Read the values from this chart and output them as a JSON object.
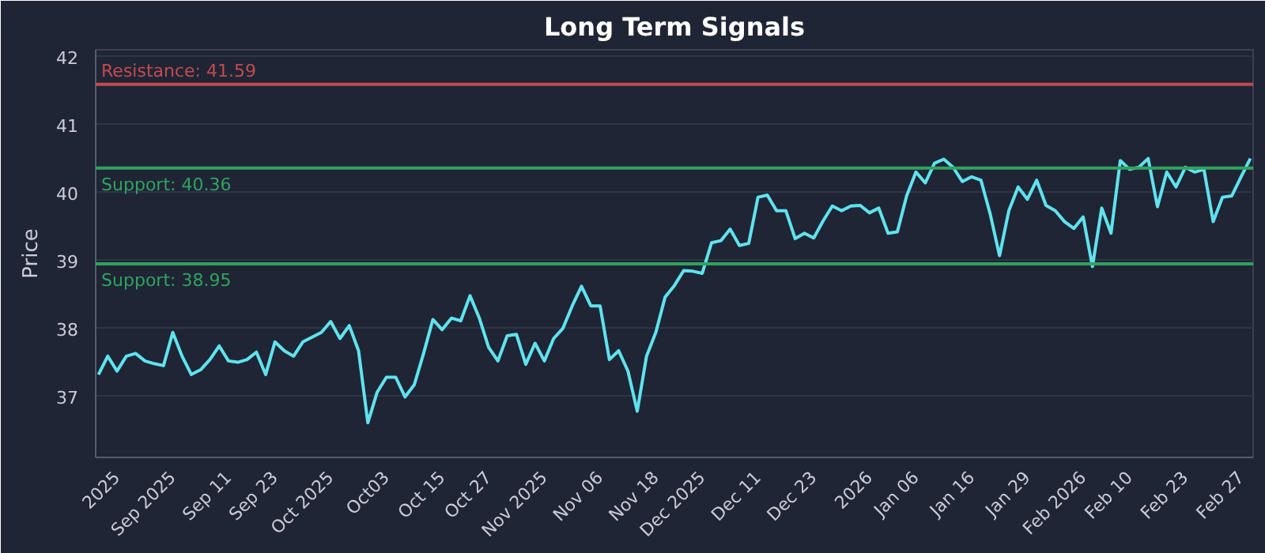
{
  "chart_data": {
    "type": "line",
    "title": "Long Term Signals",
    "ylabel": "Price",
    "categories": [
      null,
      null,
      "2025",
      null,
      null,
      null,
      null,
      null,
      "Sep 2025",
      null,
      null,
      null,
      null,
      null,
      "Sep 11",
      null,
      null,
      null,
      null,
      "Sep 23",
      null,
      null,
      null,
      null,
      null,
      "Oct 2025",
      null,
      null,
      null,
      null,
      null,
      "Oct03",
      null,
      null,
      null,
      null,
      null,
      "Oct 15",
      null,
      null,
      null,
      null,
      "Oct 27",
      null,
      null,
      null,
      null,
      null,
      "Nov 2025",
      null,
      null,
      null,
      null,
      null,
      "Nov 06",
      null,
      null,
      null,
      null,
      null,
      "Nov 18",
      null,
      null,
      null,
      null,
      "Dec 2025",
      null,
      null,
      null,
      null,
      null,
      "Dec 11",
      null,
      null,
      null,
      null,
      null,
      "Dec 23",
      null,
      null,
      null,
      null,
      null,
      "2026",
      null,
      null,
      null,
      null,
      "Jan 06",
      null,
      null,
      null,
      null,
      null,
      "Jan 16",
      null,
      null,
      null,
      null,
      null,
      "Jan 29",
      null,
      null,
      null,
      null,
      null,
      "Feb 2026",
      null,
      null,
      null,
      null,
      "Feb 10",
      null,
      null,
      null,
      null,
      null,
      "Feb 23",
      null,
      null,
      null,
      null,
      null,
      "Feb 27",
      null
    ],
    "series": [
      {
        "color": "#5fe3ee",
        "values": [
          37.32,
          37.59,
          37.37,
          37.59,
          37.63,
          37.52,
          37.48,
          37.45,
          37.94,
          37.59,
          37.32,
          37.39,
          37.54,
          37.74,
          37.52,
          37.5,
          37.54,
          37.65,
          37.32,
          37.8,
          37.67,
          37.59,
          37.8,
          37.87,
          37.94,
          38.1,
          37.85,
          38.04,
          37.67,
          36.61,
          37.06,
          37.28,
          37.28,
          36.99,
          37.17,
          37.63,
          38.13,
          37.98,
          38.15,
          38.11,
          38.48,
          38.15,
          37.72,
          37.52,
          37.89,
          37.91,
          37.47,
          37.78,
          37.52,
          37.85,
          38.0,
          38.33,
          38.62,
          38.33,
          38.33,
          37.54,
          37.67,
          37.37,
          36.78,
          37.59,
          37.94,
          38.46,
          38.63,
          38.85,
          38.84,
          38.81,
          39.26,
          39.29,
          39.46,
          39.22,
          39.25,
          39.93,
          39.96,
          39.73,
          39.73,
          39.32,
          39.4,
          39.33,
          39.58,
          39.8,
          39.73,
          39.8,
          39.81,
          39.7,
          39.77,
          39.4,
          39.42,
          39.95,
          40.3,
          40.14,
          40.43,
          40.49,
          40.37,
          40.16,
          40.23,
          40.18,
          39.68,
          39.07,
          39.73,
          40.08,
          39.9,
          40.18,
          39.81,
          39.73,
          39.57,
          39.47,
          39.64,
          38.91,
          39.77,
          39.4,
          40.47,
          40.34,
          40.37,
          40.5,
          39.79,
          40.3,
          40.08,
          40.37,
          40.3,
          40.34,
          39.57,
          39.93,
          39.95,
          40.23,
          40.5
        ]
      }
    ],
    "ylim": [
      36.1,
      42.1
    ],
    "yticks": [
      37,
      38,
      39,
      40,
      41,
      42
    ],
    "grid": "y",
    "line_style": "solid",
    "marker": "none",
    "ref_lines": [
      {
        "axis": "y",
        "value": 41.59,
        "label": "Resistance: 41.59",
        "color": "#c44a4e"
      },
      {
        "axis": "y",
        "value": 40.36,
        "label": "Support: 40.36",
        "color": "#2fa35e"
      },
      {
        "axis": "y",
        "value": 38.95,
        "label": "Support: 38.95",
        "color": "#2fa35e"
      }
    ]
  }
}
